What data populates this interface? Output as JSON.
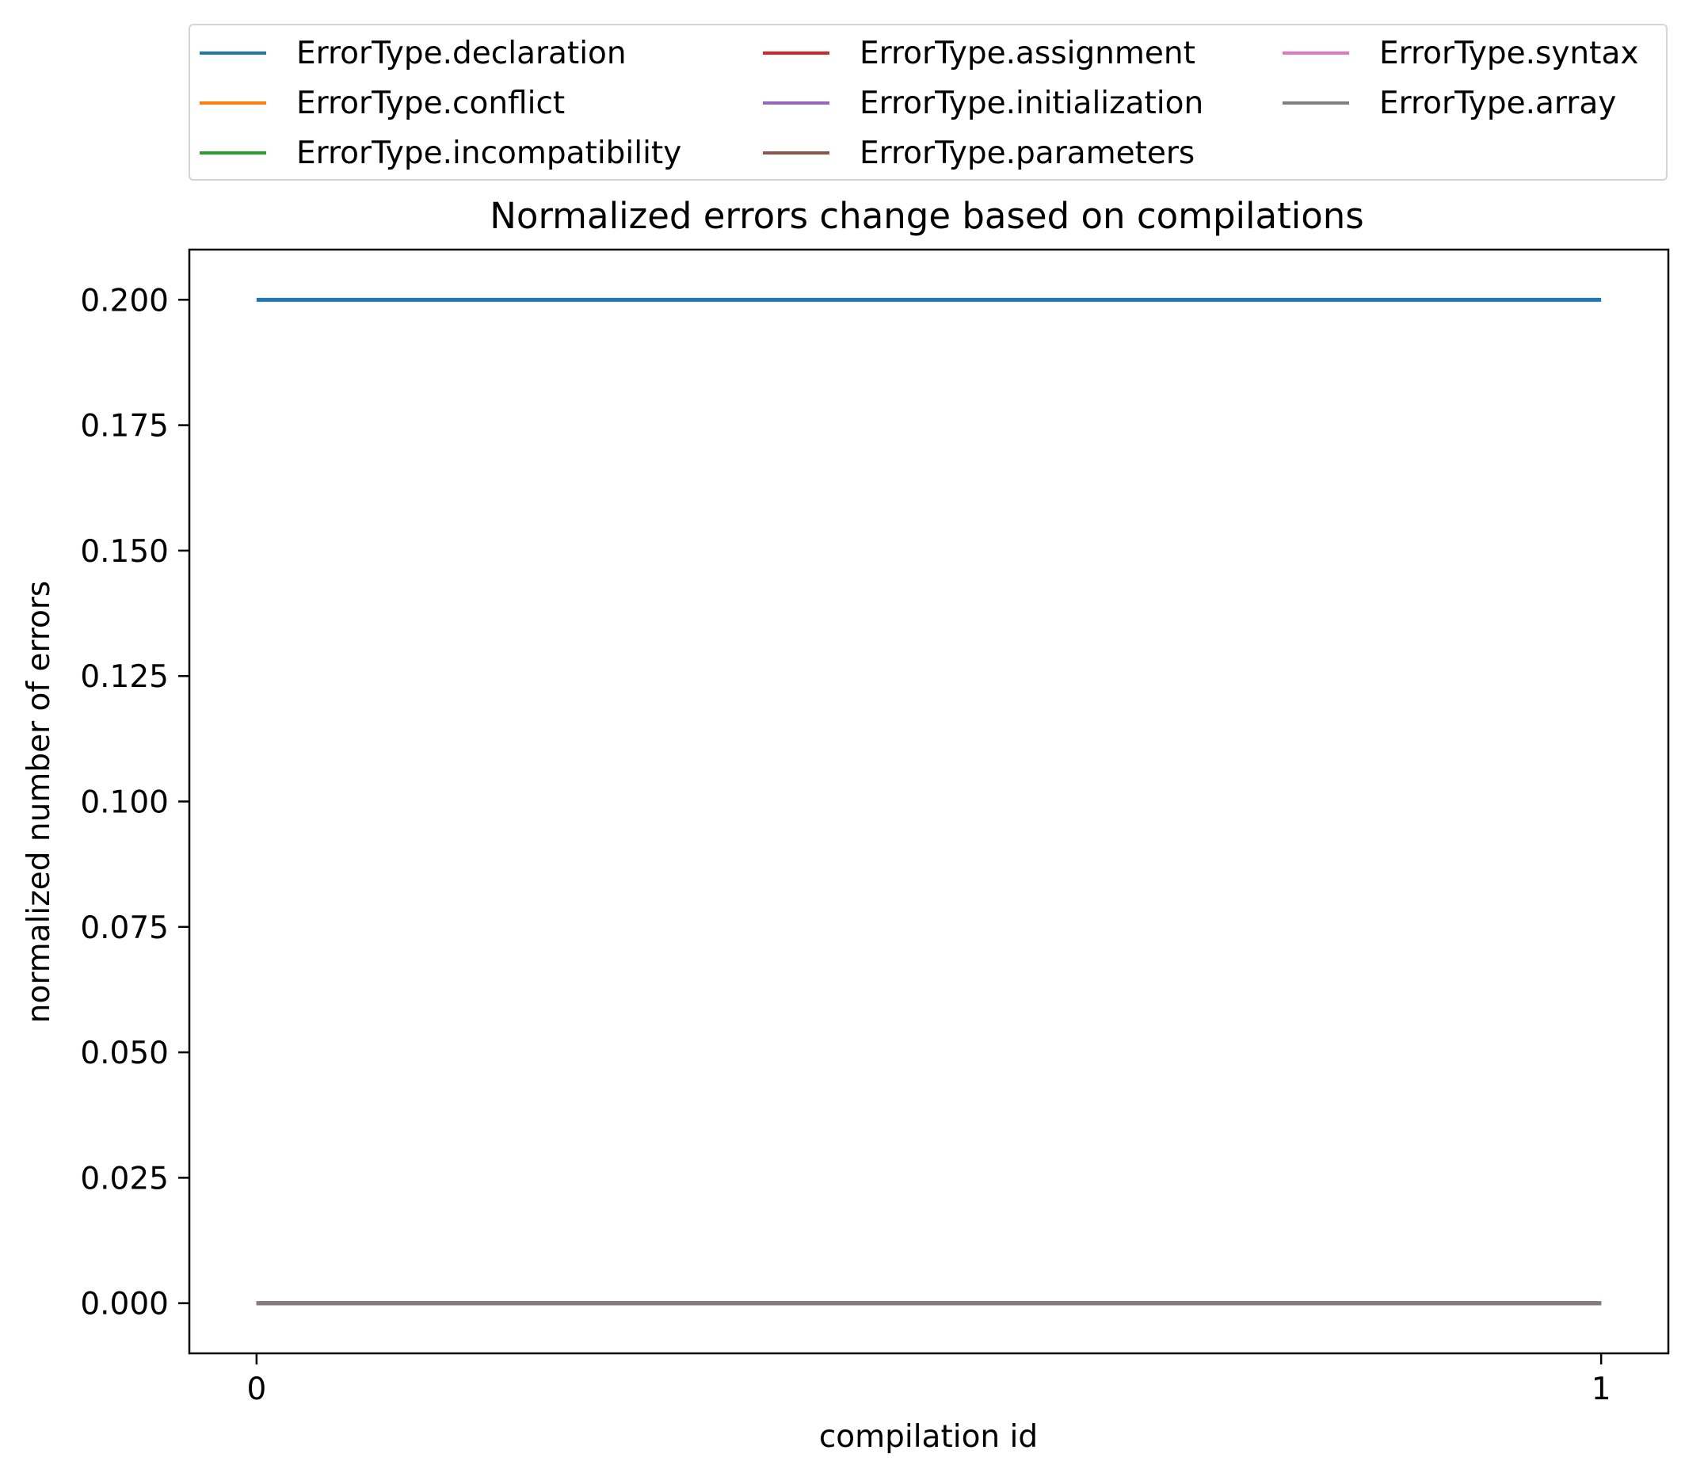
{
  "chart_data": {
    "type": "line",
    "title": "Normalized errors change based on compilations",
    "xlabel": "compilation id",
    "ylabel": "normalized number of errors",
    "x": [
      0,
      1
    ],
    "xticks": [
      "0",
      "1"
    ],
    "xlim": [
      -0.05,
      1.05
    ],
    "ylim": [
      -0.01,
      0.21
    ],
    "yticks": [
      "0.000",
      "0.025",
      "0.050",
      "0.075",
      "0.100",
      "0.125",
      "0.150",
      "0.175",
      "0.200"
    ],
    "grid": false,
    "legend_placement": "top, outside plot, 3 columns",
    "series": [
      {
        "name": "ErrorType.declaration",
        "color": "#1f77b4",
        "values": [
          0.2,
          0.2
        ]
      },
      {
        "name": "ErrorType.conflict",
        "color": "#ff7f0e",
        "values": [
          0,
          0
        ]
      },
      {
        "name": "ErrorType.incompatibility",
        "color": "#2ca02c",
        "values": [
          0,
          0
        ]
      },
      {
        "name": "ErrorType.assignment",
        "color": "#d62728",
        "values": [
          0,
          0
        ]
      },
      {
        "name": "ErrorType.initialization",
        "color": "#9467bd",
        "values": [
          0,
          0
        ]
      },
      {
        "name": "ErrorType.parameters",
        "color": "#8c564b",
        "values": [
          0,
          0
        ]
      },
      {
        "name": "ErrorType.syntax",
        "color": "#e377c2",
        "values": [
          0,
          0
        ]
      },
      {
        "name": "ErrorType.array",
        "color": "#7f7f7f",
        "values": [
          0,
          0
        ]
      }
    ]
  }
}
